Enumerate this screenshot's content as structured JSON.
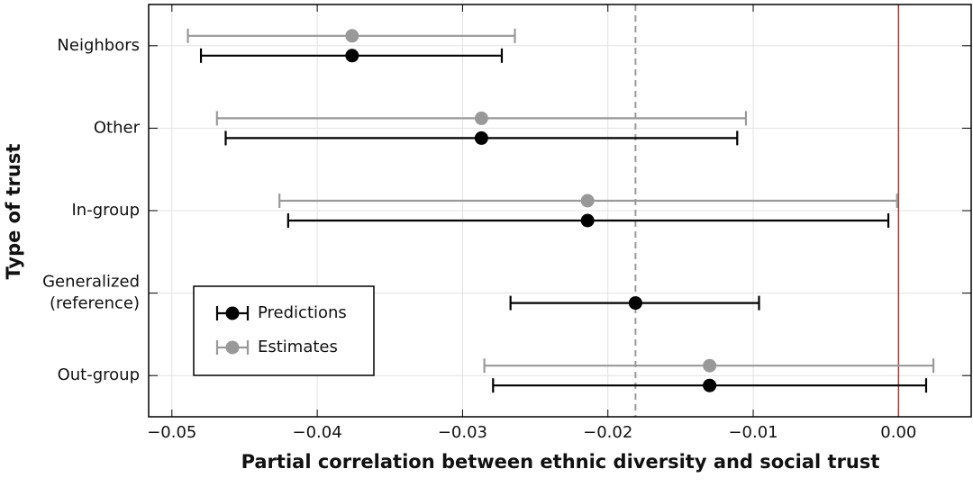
{
  "chart_data": {
    "type": "errorbar",
    "xlabel": "Partial correlation between ethnic diversity and social trust",
    "ylabel": "Type of trust",
    "categories": [
      "Neighbors",
      "Other",
      "In-group",
      "Generalized\n(reference)",
      "Out-group"
    ],
    "series": [
      {
        "name": "Predictions",
        "color": "#000000",
        "values": [
          -0.0376,
          -0.0287,
          -0.0214,
          -0.0181,
          -0.013
        ],
        "lower": [
          -0.048,
          -0.0463,
          -0.042,
          -0.0267,
          -0.0279
        ],
        "upper": [
          -0.0273,
          -0.0111,
          -0.0007,
          -0.0096,
          0.0019
        ]
      },
      {
        "name": "Estimates",
        "color": "#999999",
        "values": [
          -0.0376,
          -0.0287,
          -0.0214,
          null,
          -0.013
        ],
        "lower": [
          -0.0489,
          -0.0469,
          -0.0426,
          null,
          -0.0285
        ],
        "upper": [
          -0.0264,
          -0.0105,
          -0.0001,
          null,
          0.0024
        ]
      }
    ],
    "xlim": [
      -0.0516,
      0.005
    ],
    "xticks": [
      {
        "value": -0.05,
        "label": "−0.05"
      },
      {
        "value": -0.04,
        "label": "−0.04"
      },
      {
        "value": -0.03,
        "label": "−0.03"
      },
      {
        "value": -0.02,
        "label": "−0.02"
      },
      {
        "value": -0.01,
        "label": "−0.01"
      },
      {
        "value": 0,
        "label": "0.00"
      }
    ],
    "reference_line": {
      "value": -0.0181,
      "color": "#999999"
    },
    "zero_line": {
      "value": 0,
      "color": "#a33a3a"
    },
    "grid": true,
    "legend": "lower left"
  }
}
